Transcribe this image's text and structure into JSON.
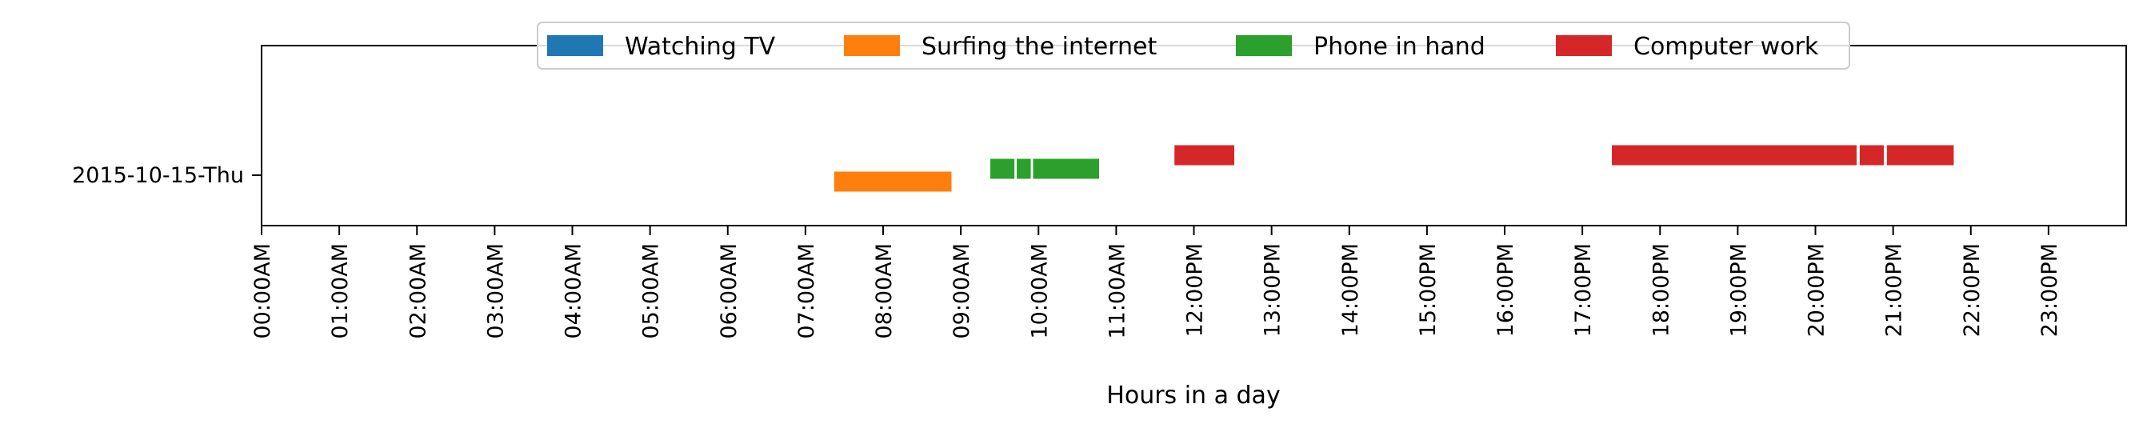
{
  "chart_data": {
    "type": "timeline",
    "title": "",
    "xlabel": "Hours in a day",
    "ylabel": "",
    "xlim": [
      0,
      24
    ],
    "x_ticks": [
      "00:00AM",
      "01:00AM",
      "02:00AM",
      "03:00AM",
      "04:00AM",
      "05:00AM",
      "06:00AM",
      "07:00AM",
      "08:00AM",
      "09:00AM",
      "10:00AM",
      "11:00AM",
      "12:00PM",
      "13:00PM",
      "14:00PM",
      "15:00PM",
      "16:00PM",
      "17:00PM",
      "18:00PM",
      "19:00PM",
      "20:00PM",
      "21:00PM",
      "22:00PM",
      "23:00PM"
    ],
    "y_categories": [
      "2015-10-15-Thu"
    ],
    "grid": false,
    "legend_placement": "top-center",
    "series": [
      {
        "name": "Watching TV",
        "color": "#1f77b4",
        "segments": []
      },
      {
        "name": "Surfing the internet",
        "color": "#ff7f0e",
        "segments": [
          [
            7.37,
            8.88
          ]
        ]
      },
      {
        "name": "Phone in hand",
        "color": "#2ca02c",
        "segments": [
          [
            9.38,
            9.69
          ],
          [
            9.72,
            9.9
          ],
          [
            9.93,
            10.78
          ]
        ]
      },
      {
        "name": "Computer work",
        "color": "#d62728",
        "segments": [
          [
            11.75,
            12.52
          ],
          [
            17.38,
            20.53
          ],
          [
            20.57,
            20.88
          ],
          [
            20.92,
            21.78
          ]
        ]
      }
    ]
  }
}
